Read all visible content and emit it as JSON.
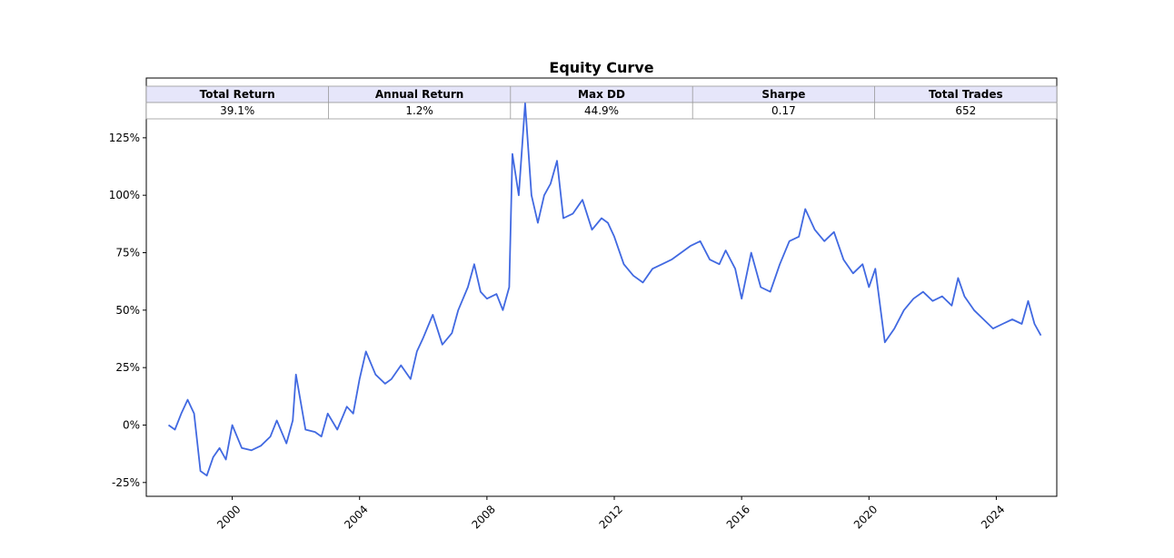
{
  "chart_data": {
    "type": "line",
    "title": "Equity Curve",
    "xlabel": "",
    "ylabel": "",
    "xlim": [
      1997.3,
      2025.9
    ],
    "ylim": [
      -31,
      151
    ],
    "x_ticks": [
      "2000",
      "2004",
      "2008",
      "2012",
      "2016",
      "2020",
      "2024"
    ],
    "y_ticks": [
      "-25%",
      "0%",
      "25%",
      "50%",
      "75%",
      "100%",
      "125%"
    ],
    "grid": false,
    "line_color": "#4169E1",
    "stats_table": {
      "headers": [
        "Total Return",
        "Annual Return",
        "Max DD",
        "Sharpe",
        "Total Trades"
      ],
      "values": [
        "39.1%",
        "1.2%",
        "44.9%",
        "0.17",
        "652"
      ],
      "header_bg": "#E6E6FA"
    },
    "series": [
      {
        "x": [
          1998.0,
          1998.2,
          1998.4,
          1998.6,
          1998.8,
          1999.0,
          1999.2,
          1999.4,
          1999.6,
          1999.8,
          2000.0,
          2000.3,
          2000.6,
          2000.9,
          2001.2,
          2001.4,
          2001.7,
          2001.9,
          2002.0,
          2002.3,
          2002.6,
          2002.8,
          2003.0,
          2003.3,
          2003.6,
          2003.8,
          2004.0,
          2004.2,
          2004.5,
          2004.8,
          2005.0,
          2005.3,
          2005.6,
          2005.8,
          2006.0,
          2006.3,
          2006.6,
          2006.9,
          2007.1,
          2007.4,
          2007.6,
          2007.8,
          2008.0,
          2008.3,
          2008.5,
          2008.7,
          2008.8,
          2009.0,
          2009.2,
          2009.4,
          2009.6,
          2009.8,
          2010.0,
          2010.2,
          2010.4,
          2010.7,
          2011.0,
          2011.3,
          2011.6,
          2011.8,
          2012.0,
          2012.3,
          2012.6,
          2012.9,
          2013.2,
          2013.5,
          2013.8,
          2014.1,
          2014.4,
          2014.7,
          2015.0,
          2015.3,
          2015.5,
          2015.8,
          2016.0,
          2016.3,
          2016.6,
          2016.9,
          2017.2,
          2017.5,
          2017.8,
          2018.0,
          2018.3,
          2018.6,
          2018.9,
          2019.2,
          2019.5,
          2019.8,
          2020.0,
          2020.2,
          2020.5,
          2020.8,
          2021.1,
          2021.4,
          2021.7,
          2022.0,
          2022.3,
          2022.6,
          2022.8,
          2023.0,
          2023.3,
          2023.6,
          2023.9,
          2024.2,
          2024.5,
          2024.8,
          2025.0,
          2025.2,
          2025.4
        ],
        "y": [
          0,
          -2,
          5,
          11,
          5,
          -20,
          -22,
          -14,
          -10,
          -15,
          0,
          -10,
          -11,
          -9,
          -5,
          2,
          -8,
          2,
          22,
          -2,
          -3,
          -5,
          5,
          -2,
          8,
          5,
          20,
          32,
          22,
          18,
          20,
          26,
          20,
          32,
          38,
          48,
          35,
          40,
          50,
          60,
          70,
          58,
          55,
          57,
          50,
          60,
          118,
          100,
          140,
          100,
          88,
          100,
          105,
          115,
          90,
          92,
          98,
          85,
          90,
          88,
          82,
          70,
          65,
          62,
          68,
          70,
          72,
          75,
          78,
          80,
          72,
          70,
          76,
          68,
          55,
          75,
          60,
          58,
          70,
          80,
          82,
          94,
          85,
          80,
          84,
          72,
          66,
          70,
          60,
          68,
          36,
          42,
          50,
          55,
          58,
          54,
          56,
          52,
          64,
          56,
          50,
          46,
          42,
          44,
          46,
          44,
          54,
          44,
          39
        ]
      }
    ]
  }
}
